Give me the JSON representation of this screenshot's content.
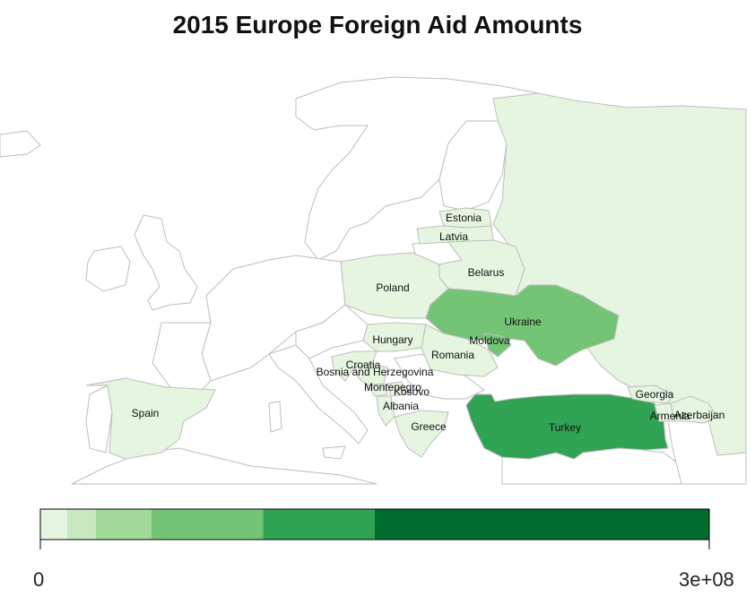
{
  "title": "2015 Europe Foreign Aid Amounts",
  "colors": {
    "no_aid_fill": "#ffffff",
    "border": "#bdbdbd",
    "bins": [
      "#e5f5e0",
      "#c7e9c0",
      "#a1d99b",
      "#74c476",
      "#31a354",
      "#006d2c"
    ]
  },
  "countries": [
    {
      "name": "Russia",
      "bin": 0,
      "labeled": false
    },
    {
      "name": "Estonia",
      "bin": 0,
      "labeled": true
    },
    {
      "name": "Latvia",
      "bin": 0,
      "labeled": true
    },
    {
      "name": "Belarus",
      "bin": 0,
      "labeled": true
    },
    {
      "name": "Poland",
      "bin": 0,
      "labeled": true
    },
    {
      "name": "Ukraine",
      "bin": 3,
      "labeled": true
    },
    {
      "name": "Moldova",
      "bin": 3,
      "labeled": true
    },
    {
      "name": "Hungary",
      "bin": 0,
      "labeled": true
    },
    {
      "name": "Romania",
      "bin": 0,
      "labeled": true
    },
    {
      "name": "Croatia",
      "bin": 0,
      "labeled": true
    },
    {
      "name": "Bosnia and Herzegovina",
      "bin": 0,
      "labeled": true
    },
    {
      "name": "Montenegro",
      "bin": 0,
      "labeled": true
    },
    {
      "name": "Kosovo",
      "bin": 0,
      "labeled": true
    },
    {
      "name": "Albania",
      "bin": 0,
      "labeled": true
    },
    {
      "name": "Greece",
      "bin": 0,
      "labeled": true
    },
    {
      "name": "Turkey",
      "bin": 4,
      "labeled": true
    },
    {
      "name": "Georgia",
      "bin": 0,
      "labeled": true
    },
    {
      "name": "Armenia",
      "bin": 0,
      "labeled": true
    },
    {
      "name": "Azerbaijan",
      "bin": 0,
      "labeled": true
    },
    {
      "name": "Spain",
      "bin": 0,
      "labeled": true
    }
  ],
  "legend": {
    "min_label": "0",
    "max_label": "3e+08",
    "min_value": 0,
    "max_value": 300000000,
    "breaks": [
      0,
      0.04,
      0.083,
      0.166,
      0.333,
      0.5,
      1.0
    ]
  }
}
